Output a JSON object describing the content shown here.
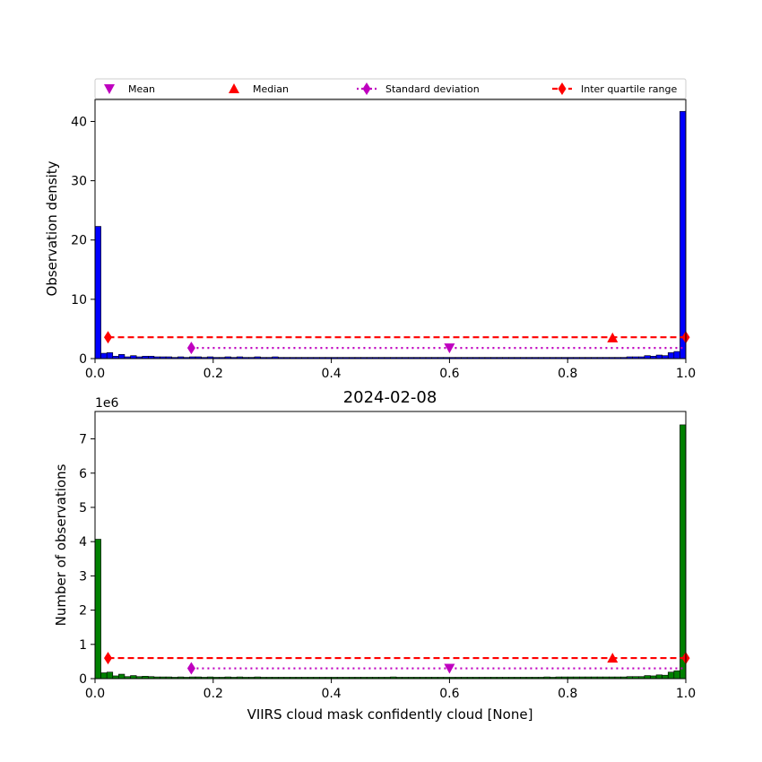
{
  "chart_data": [
    {
      "type": "bar",
      "title": "",
      "xlabel": "",
      "ylabel": "Observation density",
      "xlim": [
        0,
        1
      ],
      "ylim": [
        0,
        43.7
      ],
      "xticks": [
        "0.0",
        "0.2",
        "0.4",
        "0.6",
        "0.8",
        "1.0"
      ],
      "yticks": [
        "0",
        "10",
        "20",
        "30",
        "40"
      ],
      "bar_color": "#0000ff",
      "bin_width": 0.01,
      "bins": [
        [
          0.0,
          22.3
        ],
        [
          0.01,
          0.9
        ],
        [
          0.02,
          1.0
        ],
        [
          0.03,
          0.4
        ],
        [
          0.04,
          0.7
        ],
        [
          0.05,
          0.3
        ],
        [
          0.06,
          0.5
        ],
        [
          0.07,
          0.3
        ],
        [
          0.08,
          0.4
        ],
        [
          0.09,
          0.4
        ],
        [
          0.1,
          0.3
        ],
        [
          0.11,
          0.3
        ],
        [
          0.12,
          0.3
        ],
        [
          0.13,
          0.2
        ],
        [
          0.14,
          0.3
        ],
        [
          0.15,
          0.2
        ],
        [
          0.16,
          0.3
        ],
        [
          0.17,
          0.3
        ],
        [
          0.18,
          0.2
        ],
        [
          0.19,
          0.3
        ],
        [
          0.2,
          0.2
        ],
        [
          0.21,
          0.2
        ],
        [
          0.22,
          0.3
        ],
        [
          0.23,
          0.2
        ],
        [
          0.24,
          0.3
        ],
        [
          0.25,
          0.2
        ],
        [
          0.26,
          0.2
        ],
        [
          0.27,
          0.3
        ],
        [
          0.28,
          0.2
        ],
        [
          0.29,
          0.2
        ],
        [
          0.3,
          0.3
        ],
        [
          0.31,
          0.2
        ],
        [
          0.32,
          0.2
        ],
        [
          0.33,
          0.2
        ],
        [
          0.34,
          0.2
        ],
        [
          0.35,
          0.2
        ],
        [
          0.36,
          0.2
        ],
        [
          0.37,
          0.2
        ],
        [
          0.38,
          0.2
        ],
        [
          0.39,
          0.2
        ],
        [
          0.4,
          0.2
        ],
        [
          0.41,
          0.2
        ],
        [
          0.42,
          0.2
        ],
        [
          0.43,
          0.2
        ],
        [
          0.44,
          0.2
        ],
        [
          0.45,
          0.2
        ],
        [
          0.46,
          0.2
        ],
        [
          0.47,
          0.2
        ],
        [
          0.48,
          0.2
        ],
        [
          0.49,
          0.2
        ],
        [
          0.5,
          0.2
        ],
        [
          0.51,
          0.2
        ],
        [
          0.52,
          0.2
        ],
        [
          0.53,
          0.2
        ],
        [
          0.54,
          0.2
        ],
        [
          0.55,
          0.2
        ],
        [
          0.56,
          0.2
        ],
        [
          0.57,
          0.2
        ],
        [
          0.58,
          0.2
        ],
        [
          0.59,
          0.2
        ],
        [
          0.6,
          0.2
        ],
        [
          0.61,
          0.2
        ],
        [
          0.62,
          0.2
        ],
        [
          0.63,
          0.2
        ],
        [
          0.64,
          0.2
        ],
        [
          0.65,
          0.2
        ],
        [
          0.66,
          0.2
        ],
        [
          0.67,
          0.2
        ],
        [
          0.68,
          0.2
        ],
        [
          0.69,
          0.2
        ],
        [
          0.7,
          0.2
        ],
        [
          0.71,
          0.2
        ],
        [
          0.72,
          0.2
        ],
        [
          0.73,
          0.2
        ],
        [
          0.74,
          0.2
        ],
        [
          0.75,
          0.2
        ],
        [
          0.76,
          0.2
        ],
        [
          0.77,
          0.2
        ],
        [
          0.78,
          0.2
        ],
        [
          0.79,
          0.2
        ],
        [
          0.8,
          0.2
        ],
        [
          0.81,
          0.2
        ],
        [
          0.82,
          0.2
        ],
        [
          0.83,
          0.2
        ],
        [
          0.84,
          0.2
        ],
        [
          0.85,
          0.2
        ],
        [
          0.86,
          0.2
        ],
        [
          0.87,
          0.2
        ],
        [
          0.88,
          0.2
        ],
        [
          0.89,
          0.2
        ],
        [
          0.9,
          0.3
        ],
        [
          0.91,
          0.3
        ],
        [
          0.92,
          0.3
        ],
        [
          0.93,
          0.5
        ],
        [
          0.94,
          0.4
        ],
        [
          0.95,
          0.6
        ],
        [
          0.96,
          0.5
        ],
        [
          0.97,
          1.0
        ],
        [
          0.98,
          1.2
        ],
        [
          0.99,
          41.7
        ]
      ],
      "stats": {
        "mean": {
          "x": 0.6,
          "y": 1.8
        },
        "median": {
          "x": 0.876,
          "y": 3.5
        },
        "std": {
          "x0": 0.163,
          "x1": 1.0,
          "y": 1.8
        },
        "iqr": {
          "x0": 0.022,
          "x1": 1.0,
          "y": 3.6
        }
      }
    },
    {
      "type": "bar",
      "title": "2024-02-08",
      "xlabel": "VIIRS cloud mask confidently cloud [None]",
      "ylabel": "Number of observations",
      "offset_label": "1e6",
      "xlim": [
        0,
        1
      ],
      "ylim": [
        0,
        7.8
      ],
      "y_scale": 1000000,
      "xticks": [
        "0.0",
        "0.2",
        "0.4",
        "0.6",
        "0.8",
        "1.0"
      ],
      "yticks": [
        "0",
        "1",
        "2",
        "3",
        "4",
        "5",
        "6",
        "7"
      ],
      "bar_color": "#008000",
      "bin_width": 0.01,
      "bins": [
        [
          0.0,
          4.07
        ],
        [
          0.01,
          0.17
        ],
        [
          0.02,
          0.19
        ],
        [
          0.03,
          0.08
        ],
        [
          0.04,
          0.13
        ],
        [
          0.05,
          0.06
        ],
        [
          0.06,
          0.09
        ],
        [
          0.07,
          0.06
        ],
        [
          0.08,
          0.07
        ],
        [
          0.09,
          0.06
        ],
        [
          0.1,
          0.05
        ],
        [
          0.11,
          0.05
        ],
        [
          0.12,
          0.05
        ],
        [
          0.13,
          0.04
        ],
        [
          0.14,
          0.05
        ],
        [
          0.15,
          0.04
        ],
        [
          0.16,
          0.05
        ],
        [
          0.17,
          0.05
        ],
        [
          0.18,
          0.04
        ],
        [
          0.19,
          0.05
        ],
        [
          0.2,
          0.04
        ],
        [
          0.21,
          0.04
        ],
        [
          0.22,
          0.05
        ],
        [
          0.23,
          0.04
        ],
        [
          0.24,
          0.05
        ],
        [
          0.25,
          0.04
        ],
        [
          0.26,
          0.04
        ],
        [
          0.27,
          0.05
        ],
        [
          0.28,
          0.04
        ],
        [
          0.29,
          0.04
        ],
        [
          0.3,
          0.04
        ],
        [
          0.31,
          0.04
        ],
        [
          0.32,
          0.04
        ],
        [
          0.33,
          0.04
        ],
        [
          0.34,
          0.04
        ],
        [
          0.35,
          0.04
        ],
        [
          0.36,
          0.04
        ],
        [
          0.37,
          0.04
        ],
        [
          0.38,
          0.04
        ],
        [
          0.39,
          0.04
        ],
        [
          0.4,
          0.04
        ],
        [
          0.41,
          0.04
        ],
        [
          0.42,
          0.04
        ],
        [
          0.43,
          0.04
        ],
        [
          0.44,
          0.04
        ],
        [
          0.45,
          0.04
        ],
        [
          0.46,
          0.04
        ],
        [
          0.47,
          0.04
        ],
        [
          0.48,
          0.04
        ],
        [
          0.49,
          0.04
        ],
        [
          0.5,
          0.05
        ],
        [
          0.51,
          0.04
        ],
        [
          0.52,
          0.04
        ],
        [
          0.53,
          0.04
        ],
        [
          0.54,
          0.04
        ],
        [
          0.55,
          0.04
        ],
        [
          0.56,
          0.04
        ],
        [
          0.57,
          0.04
        ],
        [
          0.58,
          0.04
        ],
        [
          0.59,
          0.04
        ],
        [
          0.6,
          0.04
        ],
        [
          0.61,
          0.04
        ],
        [
          0.62,
          0.04
        ],
        [
          0.63,
          0.04
        ],
        [
          0.64,
          0.04
        ],
        [
          0.65,
          0.04
        ],
        [
          0.66,
          0.04
        ],
        [
          0.67,
          0.04
        ],
        [
          0.68,
          0.04
        ],
        [
          0.69,
          0.04
        ],
        [
          0.7,
          0.04
        ],
        [
          0.71,
          0.04
        ],
        [
          0.72,
          0.04
        ],
        [
          0.73,
          0.04
        ],
        [
          0.74,
          0.04
        ],
        [
          0.75,
          0.04
        ],
        [
          0.76,
          0.05
        ],
        [
          0.77,
          0.04
        ],
        [
          0.78,
          0.05
        ],
        [
          0.79,
          0.05
        ],
        [
          0.8,
          0.05
        ],
        [
          0.81,
          0.05
        ],
        [
          0.82,
          0.05
        ],
        [
          0.83,
          0.05
        ],
        [
          0.84,
          0.05
        ],
        [
          0.85,
          0.05
        ],
        [
          0.86,
          0.05
        ],
        [
          0.87,
          0.05
        ],
        [
          0.88,
          0.05
        ],
        [
          0.89,
          0.05
        ],
        [
          0.9,
          0.06
        ],
        [
          0.91,
          0.06
        ],
        [
          0.92,
          0.06
        ],
        [
          0.93,
          0.09
        ],
        [
          0.94,
          0.08
        ],
        [
          0.95,
          0.11
        ],
        [
          0.96,
          0.1
        ],
        [
          0.97,
          0.19
        ],
        [
          0.98,
          0.23
        ],
        [
          0.99,
          7.41
        ]
      ],
      "stats": {
        "mean": {
          "x": 0.6,
          "y": 0.3
        },
        "median": {
          "x": 0.876,
          "y": 0.6
        },
        "std": {
          "x0": 0.163,
          "x1": 1.0,
          "y": 0.3
        },
        "iqr": {
          "x0": 0.022,
          "x1": 1.0,
          "y": 0.6
        }
      }
    }
  ],
  "legend": {
    "placement": "top",
    "entries": [
      {
        "key": "mean",
        "label": "Mean",
        "color": "#bf00bf",
        "marker": "triangle-down"
      },
      {
        "key": "median",
        "label": "Median",
        "color": "#ff0000",
        "marker": "triangle-up"
      },
      {
        "key": "std",
        "label": "Standard deviation",
        "color": "#bf00bf",
        "marker": "diamond",
        "line": "dotted"
      },
      {
        "key": "iqr",
        "label": "Inter quartile range",
        "color": "#ff0000",
        "marker": "diamond",
        "line": "dashed"
      }
    ]
  }
}
